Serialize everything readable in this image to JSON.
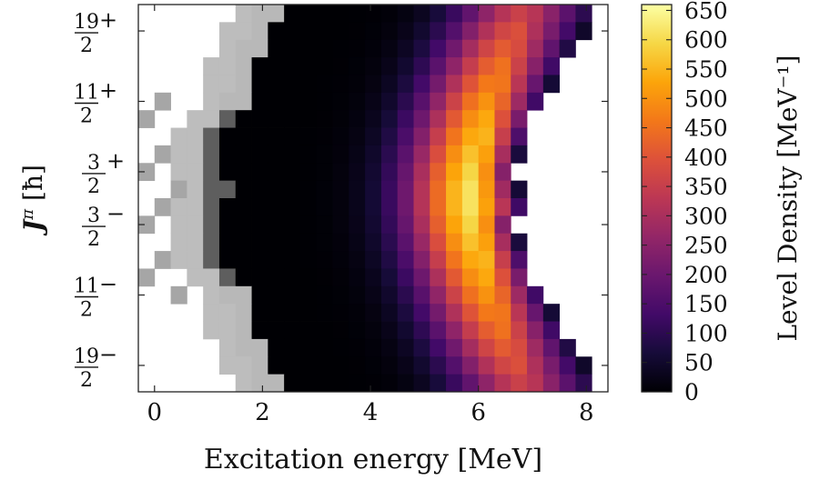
{
  "chart_data": {
    "type": "heatmap",
    "title": "",
    "xlabel": "Excitation energy [MeV]",
    "ylabel": "J^π [ħ]",
    "xlim": [
      -0.3,
      8.4
    ],
    "x_ticks": [
      0,
      2,
      4,
      6,
      8
    ],
    "y_ticks": [
      {
        "num": "19",
        "den": "2",
        "parity": "+"
      },
      {
        "num": "11",
        "den": "2",
        "parity": "+"
      },
      {
        "num": "3",
        "den": "2",
        "parity": "+"
      },
      {
        "num": "3",
        "den": "2",
        "parity": "−"
      },
      {
        "num": "11",
        "den": "2",
        "parity": "−"
      },
      {
        "num": "19",
        "den": "2",
        "parity": "−"
      }
    ],
    "rows_top_to_bottom": [
      "21/2+",
      "19/2+",
      "17/2+",
      "15/2+",
      "13/2+",
      "11/2+",
      "9/2+",
      "7/2+",
      "5/2+",
      "3/2+",
      "1/2+",
      "1/2-",
      "3/2-",
      "5/2-",
      "7/2-",
      "9/2-",
      "11/2-",
      "13/2-",
      "15/2-",
      "17/2-",
      "19/2-",
      "21/2-"
    ],
    "bin_width_MeV": 0.3,
    "bins_start_MeV": -0.3,
    "colorbar": {
      "label": "Level Density [MeV⁻¹]",
      "ticks": [
        0,
        50,
        100,
        150,
        200,
        250,
        300,
        350,
        400,
        450,
        500,
        550,
        600,
        650
      ],
      "range": [
        0,
        660
      ]
    },
    "grey_regions": "Gray cells at low excitation energy mark bins containing no levels (light gray) or very few levels (dark gray)."
  }
}
